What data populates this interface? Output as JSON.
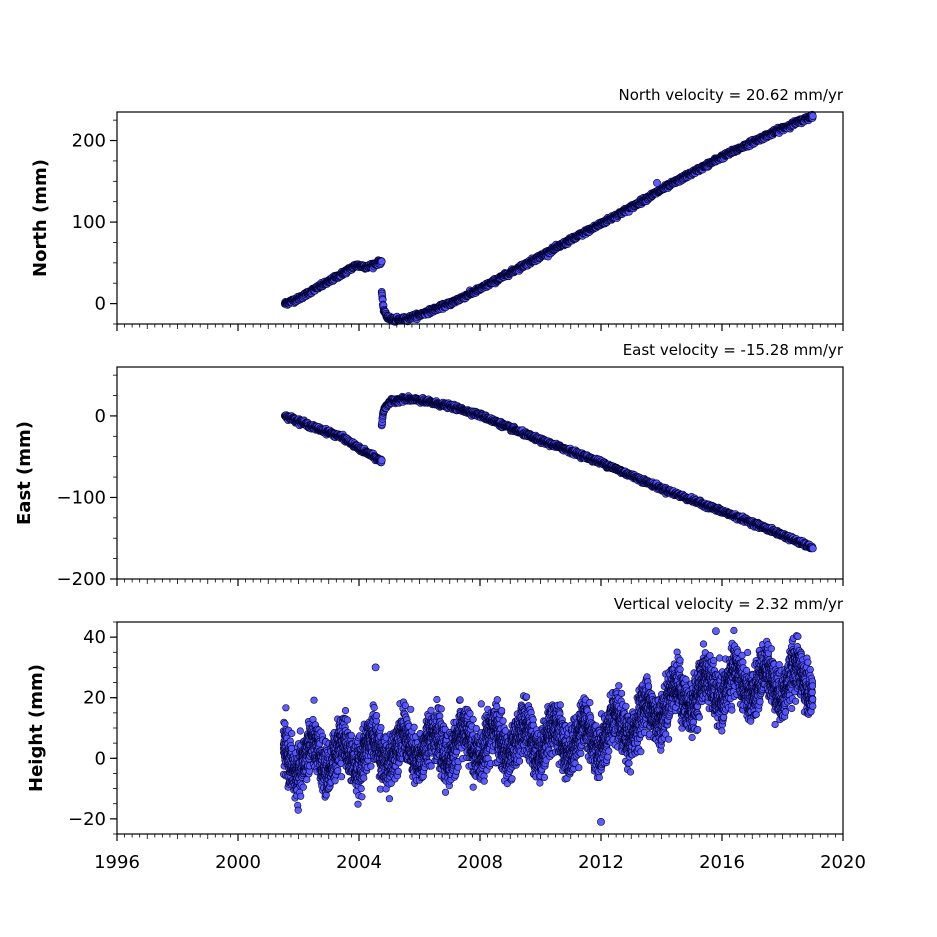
{
  "chart_data": [
    {
      "type": "scatter",
      "title": "North velocity = 20.62 mm/yr",
      "xlabel": "",
      "ylabel": "North (mm)",
      "xlim": [
        1996,
        2020
      ],
      "ylim": [
        -25,
        235
      ],
      "yticks": [
        0,
        100,
        200
      ],
      "marker_color": "#5555ff",
      "edge_color": "#000033",
      "segments": [
        {
          "x": [
            2001.55,
            2002.0,
            2002.5,
            2003.0,
            2003.5,
            2003.9,
            2004.3,
            2004.75
          ],
          "y": [
            0,
            6,
            17,
            27,
            38,
            47,
            45,
            52
          ]
        },
        {
          "x": [
            2004.75,
            2004.8,
            2004.9,
            2005.1,
            2005.5,
            2006.0,
            2007.0,
            2008.0,
            2009.0,
            2010.0,
            2011.0,
            2012.0,
            2013.0,
            2014.0,
            2015.0,
            2016.0,
            2017.0,
            2018.0,
            2019.0
          ],
          "y": [
            15,
            -5,
            -15,
            -20,
            -19,
            -14,
            0,
            18,
            38,
            58,
            78,
            98,
            118,
            140,
            160,
            180,
            198,
            215,
            230
          ]
        }
      ],
      "outliers": [
        {
          "x": 2013.85,
          "y": 148
        }
      ]
    },
    {
      "type": "scatter",
      "title": "East velocity = -15.28 mm/yr",
      "xlabel": "",
      "ylabel": "East (mm)",
      "xlim": [
        1996,
        2020
      ],
      "ylim": [
        -200,
        60
      ],
      "yticks": [
        0,
        -100,
        -200
      ],
      "marker_color": "#5555ff",
      "edge_color": "#000033",
      "segments": [
        {
          "x": [
            2001.55,
            2002.0,
            2002.5,
            2003.0,
            2003.5,
            2004.0,
            2004.4,
            2004.75
          ],
          "y": [
            0,
            -6,
            -14,
            -20,
            -27,
            -40,
            -48,
            -56
          ]
        },
        {
          "x": [
            2004.75,
            2004.8,
            2004.9,
            2005.1,
            2005.5,
            2006.0,
            2007.0,
            2008.0,
            2009.0,
            2010.0,
            2011.0,
            2012.0,
            2013.0,
            2014.0,
            2015.0,
            2016.0,
            2017.0,
            2018.0,
            2019.0
          ],
          "y": [
            -12,
            5,
            13,
            18,
            21,
            19,
            12,
            1,
            -15,
            -30,
            -43,
            -57,
            -73,
            -89,
            -103,
            -117,
            -131,
            -146,
            -162
          ]
        }
      ],
      "outliers": []
    },
    {
      "type": "scatter",
      "title": "Vertical velocity = 2.32 mm/yr",
      "xlabel": "",
      "ylabel": "Height (mm)",
      "xlim": [
        1996,
        2020
      ],
      "ylim": [
        -25,
        45
      ],
      "yticks": [
        40,
        20,
        0,
        -20
      ],
      "marker_color": "#5555ff",
      "edge_color": "#000033",
      "trend": {
        "x": [
          2001.5,
          2004.0,
          2008.0,
          2012.0,
          2013.3,
          2014.0,
          2016.0,
          2019.0
        ],
        "y": [
          -1,
          2,
          5,
          7,
          12,
          18,
          24,
          26
        ]
      },
      "noise": {
        "start": 2001.5,
        "end": 2019.0,
        "seasonal_amplitude": 5,
        "scatter": 4
      },
      "outliers": [
        {
          "x": 2004.55,
          "y": 30
        },
        {
          "x": 2012.0,
          "y": -21
        },
        {
          "x": 2015.8,
          "y": 42
        }
      ]
    }
  ],
  "x_tick_labels": [
    "1996",
    "2000",
    "2004",
    "2008",
    "2012",
    "2016",
    "2020"
  ]
}
